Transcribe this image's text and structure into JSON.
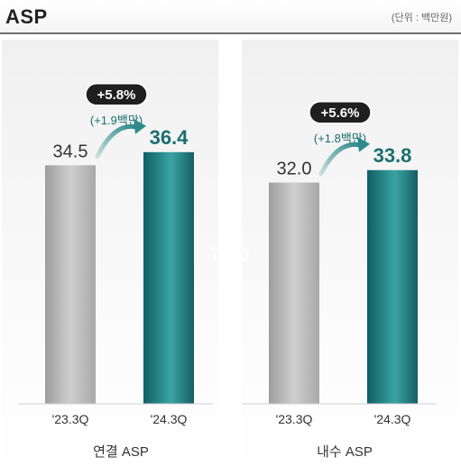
{
  "header": {
    "title": "ASP",
    "unit": "(단위 : 백만원)"
  },
  "watermark": "TBD",
  "colors": {
    "gray_bar": "#b8b8b8",
    "teal_bar": "#1d7e80",
    "teal_text": "#1a6e72",
    "badge_bg": "#1f1f1f"
  },
  "chart_data": [
    {
      "type": "bar",
      "title": "연결 ASP",
      "categories": [
        "'23.3Q",
        "'24.3Q"
      ],
      "values": [
        34.5,
        36.4
      ],
      "labels": [
        "34.5",
        "36.4"
      ],
      "change_badge": "+5.8%",
      "change_note": "(+1.9백만)",
      "ylim": [
        0,
        40
      ]
    },
    {
      "type": "bar",
      "title": "내수 ASP",
      "categories": [
        "'23.3Q",
        "'24.3Q"
      ],
      "values": [
        32.0,
        33.8
      ],
      "labels": [
        "32.0",
        "33.8"
      ],
      "change_badge": "+5.6%",
      "change_note": "(+1.8백만)",
      "ylim": [
        0,
        40
      ]
    }
  ]
}
